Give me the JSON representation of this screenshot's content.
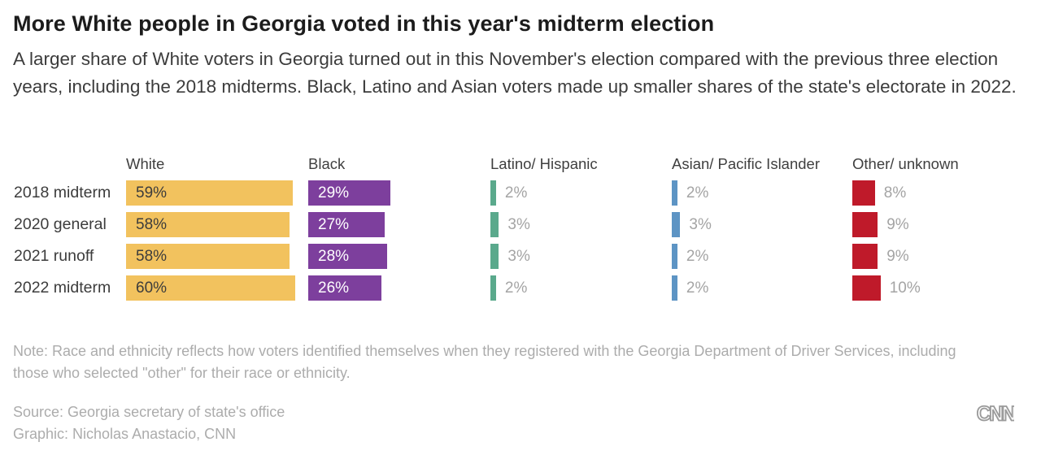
{
  "header": {
    "title": "More White people in Georgia voted in this year's midterm election",
    "subtitle": "A larger share of White voters in Georgia turned out in this November's election compared with the previous three election years, including the 2018 midterms. Black, Latino and Asian voters made up smaller shares of the state's electorate in 2022."
  },
  "chart_data": {
    "type": "bar",
    "orientation": "horizontal",
    "categories": [
      "2018 midterm",
      "2020 general",
      "2021 runoff",
      "2022 midterm"
    ],
    "series": [
      {
        "name": "White",
        "values": [
          59,
          58,
          58,
          60
        ],
        "color": "#f2c25e",
        "label_style": "inside-dark"
      },
      {
        "name": "Black",
        "values": [
          29,
          27,
          28,
          26
        ],
        "color": "#7d3f9d",
        "label_style": "inside-light"
      },
      {
        "name": "Latino/ Hispanic",
        "values": [
          2,
          3,
          3,
          2
        ],
        "color": "#5aa98c",
        "label_style": "outside-gray"
      },
      {
        "name": "Asian/ Pacific Islander",
        "values": [
          2,
          3,
          2,
          2
        ],
        "color": "#5d94c4",
        "label_style": "outside-gray"
      },
      {
        "name": "Other/ unknown",
        "values": [
          8,
          9,
          9,
          10
        ],
        "color": "#bf1a2a",
        "label_style": "outside-gray"
      }
    ],
    "unit": "%",
    "xlim": [
      0,
      64
    ],
    "value_labels": true,
    "grid": false,
    "legend_position": "column-headers"
  },
  "footer": {
    "note": "Note: Race and ethnicity reflects how voters identified themselves when they registered with the Georgia Department of Driver Services, including those who selected \"other\" for their race or ethnicity.",
    "source": "Source: Georgia secretary of state's office",
    "credit": "Graphic: Nicholas Anastacio, CNN",
    "logo_text": "CNN"
  },
  "colors": {
    "title": "#1c1c1c",
    "body_text": "#3c3c3c",
    "muted_text": "#a4a4a4",
    "white_bar": "#f2c25e",
    "black_bar": "#7d3f9d",
    "latino_bar": "#5aa98c",
    "asian_bar": "#5d94c4",
    "other_bar": "#bf1a2a"
  }
}
